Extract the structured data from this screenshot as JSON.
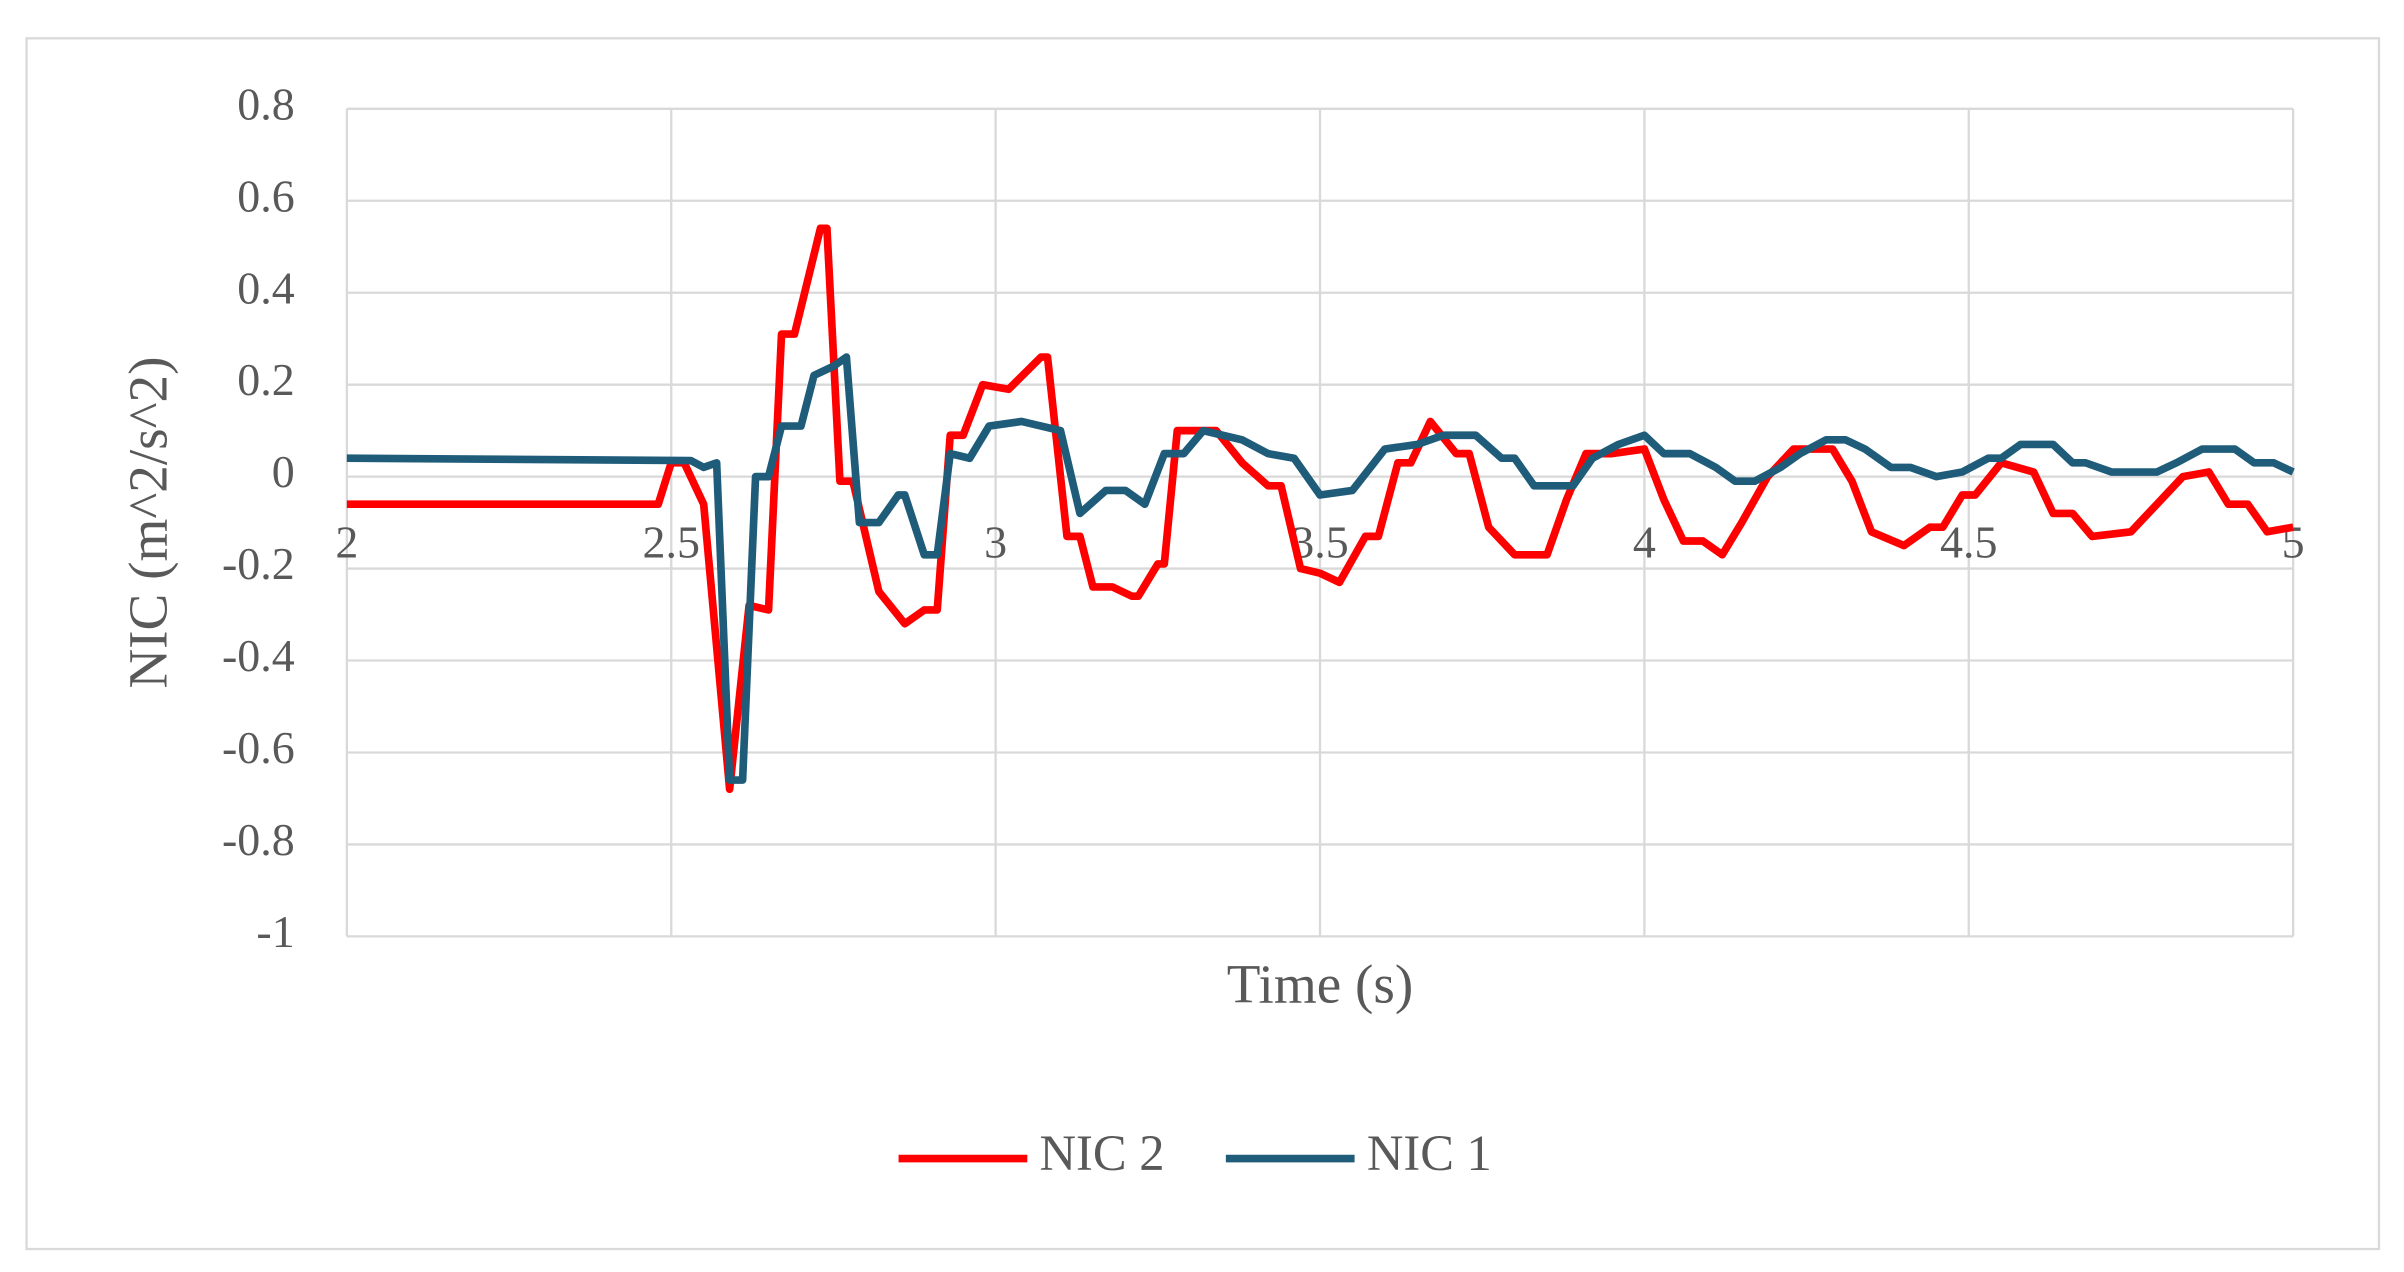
{
  "chart_data": {
    "type": "line",
    "x_label": "Time (s)",
    "y_label": "NIC (m^2/s^2)",
    "xlim": [
      2,
      5
    ],
    "xticks": [
      2,
      2.5,
      3,
      3.5,
      4,
      4.5,
      5
    ],
    "ylim": [
      -1,
      0.8
    ],
    "yticks": [
      -1,
      -0.8,
      -0.6,
      -0.4,
      -0.2,
      0,
      0.2,
      0.4,
      0.6,
      0.8
    ],
    "grid": true,
    "legend": "bottom",
    "series": [
      {
        "name": "NIC 2",
        "color": "#ff0000",
        "x": [
          2,
          2.48,
          2.5,
          2.52,
          2.55,
          2.59,
          2.62,
          2.65,
          2.67,
          2.69,
          2.73,
          2.74,
          2.76,
          2.78,
          2.82,
          2.86,
          2.89,
          2.91,
          2.93,
          2.95,
          2.98,
          3.02,
          3.07,
          3.08,
          3.11,
          3.13,
          3.15,
          3.18,
          3.21,
          3.22,
          3.25,
          3.26,
          3.28,
          3.34,
          3.38,
          3.42,
          3.44,
          3.47,
          3.5,
          3.53,
          3.57,
          3.59,
          3.62,
          3.64,
          3.67,
          3.71,
          3.73,
          3.76,
          3.8,
          3.85,
          3.88,
          3.91,
          3.95,
          4.0,
          4.03,
          4.06,
          4.09,
          4.12,
          4.15,
          4.19,
          4.23,
          4.29,
          4.32,
          4.35,
          4.4,
          4.44,
          4.46,
          4.49,
          4.51,
          4.55,
          4.6,
          4.63,
          4.66,
          4.69,
          4.75,
          4.79,
          4.83,
          4.87,
          4.9,
          4.93,
          4.96,
          5
        ],
        "values": [
          -0.06,
          -0.06,
          0.03,
          0.03,
          -0.06,
          -0.68,
          -0.28,
          -0.29,
          0.31,
          0.31,
          0.54,
          0.54,
          -0.01,
          -0.01,
          -0.25,
          -0.32,
          -0.29,
          -0.29,
          0.09,
          0.09,
          0.2,
          0.19,
          0.26,
          0.26,
          -0.13,
          -0.13,
          -0.24,
          -0.24,
          -0.26,
          -0.26,
          -0.19,
          -0.19,
          0.1,
          0.1,
          0.03,
          -0.02,
          -0.02,
          -0.2,
          -0.21,
          -0.23,
          -0.13,
          -0.13,
          0.03,
          0.03,
          0.12,
          0.05,
          0.05,
          -0.11,
          -0.17,
          -0.17,
          -0.05,
          0.05,
          0.05,
          0.06,
          -0.05,
          -0.14,
          -0.14,
          -0.17,
          -0.1,
          0,
          0.06,
          0.06,
          -0.01,
          -0.12,
          -0.15,
          -0.11,
          -0.11,
          -0.04,
          -0.04,
          0.03,
          0.01,
          -0.08,
          -0.08,
          -0.13,
          -0.12,
          -0.06,
          0,
          0.01,
          -0.06,
          -0.06,
          -0.12,
          -0.11
        ]
      },
      {
        "name": "NIC 1",
        "color": "#1f5c7a",
        "x": [
          2,
          2.53,
          2.55,
          2.57,
          2.59,
          2.61,
          2.63,
          2.65,
          2.67,
          2.7,
          2.72,
          2.75,
          2.77,
          2.79,
          2.82,
          2.85,
          2.86,
          2.89,
          2.91,
          2.93,
          2.96,
          2.99,
          3.04,
          3.1,
          3.13,
          3.17,
          3.2,
          3.23,
          3.26,
          3.29,
          3.32,
          3.38,
          3.42,
          3.46,
          3.5,
          3.55,
          3.6,
          3.65,
          3.69,
          3.74,
          3.78,
          3.8,
          3.83,
          3.89,
          3.92,
          3.96,
          4.0,
          4.03,
          4.07,
          4.11,
          4.14,
          4.17,
          4.21,
          4.24,
          4.28,
          4.31,
          4.34,
          4.38,
          4.41,
          4.45,
          4.49,
          4.53,
          4.55,
          4.58,
          4.63,
          4.66,
          4.68,
          4.72,
          4.79,
          4.82,
          4.86,
          4.91,
          4.94,
          4.97,
          5
        ],
        "values": [
          0.04,
          0.035,
          0.02,
          0.03,
          -0.66,
          -0.66,
          0,
          0,
          0.11,
          0.11,
          0.22,
          0.24,
          0.26,
          -0.1,
          -0.1,
          -0.04,
          -0.04,
          -0.17,
          -0.17,
          0.05,
          0.04,
          0.11,
          0.12,
          0.1,
          -0.08,
          -0.03,
          -0.03,
          -0.06,
          0.05,
          0.05,
          0.1,
          0.08,
          0.05,
          0.04,
          -0.04,
          -0.03,
          0.06,
          0.07,
          0.09,
          0.09,
          0.04,
          0.04,
          -0.02,
          -0.02,
          0.04,
          0.07,
          0.09,
          0.05,
          0.05,
          0.02,
          -0.01,
          -0.01,
          0.02,
          0.05,
          0.08,
          0.08,
          0.06,
          0.02,
          0.02,
          0,
          0.01,
          0.04,
          0.04,
          0.07,
          0.07,
          0.03,
          0.03,
          0.01,
          0.01,
          0.03,
          0.06,
          0.06,
          0.03,
          0.03,
          0.01
        ]
      }
    ]
  }
}
